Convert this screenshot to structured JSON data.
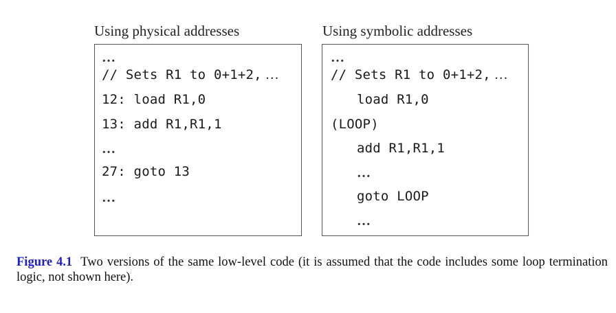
{
  "left_panel": {
    "title": "Using physical addresses",
    "lines": {
      "l0": "…",
      "l1": "// Sets R1 to 0+1+2,",
      "l1_tail": " …",
      "l2": "12: load R1,0",
      "l3": "13: add R1,R1,1",
      "l4": "…",
      "l5": "27: goto 13",
      "l6": "…"
    }
  },
  "right_panel": {
    "title": "Using symbolic addresses",
    "lines": {
      "l0": "…",
      "l1": "// Sets R1 to 0+1+2,",
      "l1_tail": " …",
      "l2": "load R1,0",
      "l3": "(LOOP)",
      "l4": "add R1,R1,1",
      "l5": "…",
      "l6": "goto LOOP",
      "l7": "…"
    }
  },
  "caption": {
    "label": "Figure 4.1",
    "text": "Two versions of the same low-level code (it is assumed that the code includes some loop termination logic, not shown here)."
  },
  "colors": {
    "figure_label": "#1f1fc8",
    "box_border": "#555555"
  }
}
